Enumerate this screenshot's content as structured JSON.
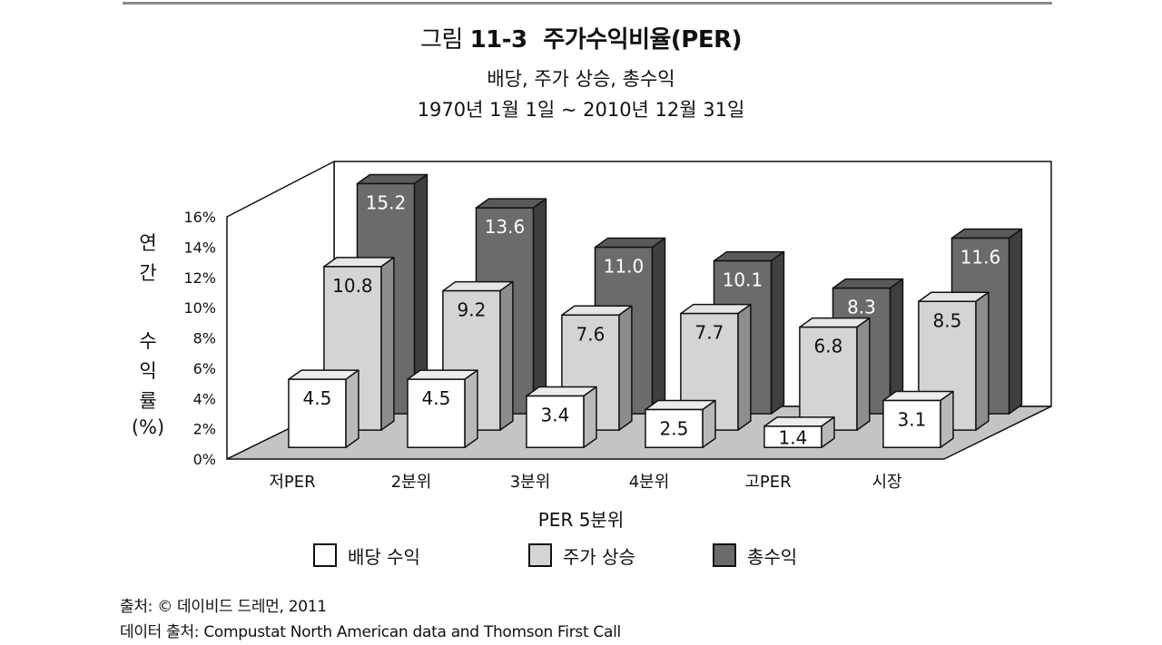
{
  "figure": {
    "label": "그림",
    "number": "11-3",
    "title": "주가수익비율(PER)",
    "subtitle": "배당, 주가 상승, 총수익",
    "period": "1970년 1월 1일 ~ 2010년 12월 31일"
  },
  "chart_data": {
    "type": "bar",
    "style": "3d-clustered",
    "categories": [
      "저PER",
      "2분위",
      "3분위",
      "4분위",
      "고PER",
      "시장"
    ],
    "series": [
      {
        "name": "배당 수익",
        "values": [
          4.5,
          4.5,
          3.4,
          2.5,
          1.4,
          3.1
        ],
        "color": "#ffffff"
      },
      {
        "name": "주가 상승",
        "values": [
          10.8,
          9.2,
          7.6,
          7.7,
          6.8,
          8.5
        ],
        "color": "#d4d4d4"
      },
      {
        "name": "총수익",
        "values": [
          15.2,
          13.6,
          11.0,
          10.1,
          8.3,
          11.6
        ],
        "color": "#6b6b6b"
      }
    ],
    "data_labels": [
      [
        "4.5",
        "4.5",
        "3.4",
        "2.5",
        "1.4",
        "3.1"
      ],
      [
        "10.8",
        "9.2",
        "7.6",
        "7.7",
        "6.8",
        "8.5"
      ],
      [
        "15.2",
        "13.6",
        "11.0",
        "10.1",
        "8.3",
        "11.6"
      ]
    ],
    "y_ticks": [
      "0%",
      "2%",
      "4%",
      "6%",
      "8%",
      "10%",
      "12%",
      "14%",
      "16%"
    ],
    "ylim": [
      0,
      16
    ],
    "xlabel": "PER 5분위",
    "ylabel_lines": [
      "연",
      "간",
      "수",
      "익",
      "률",
      "(%)"
    ]
  },
  "legend": {
    "items": [
      {
        "label": "배당 수익",
        "color": "#ffffff"
      },
      {
        "label": "주가 상승",
        "color": "#d4d4d4"
      },
      {
        "label": "총수익",
        "color": "#6b6b6b"
      }
    ]
  },
  "footnotes": {
    "source": "출처: © 데이비드 드레먼, 2011",
    "data_source": "데이터 출처: Compustat North American data and Thomson First Call"
  }
}
